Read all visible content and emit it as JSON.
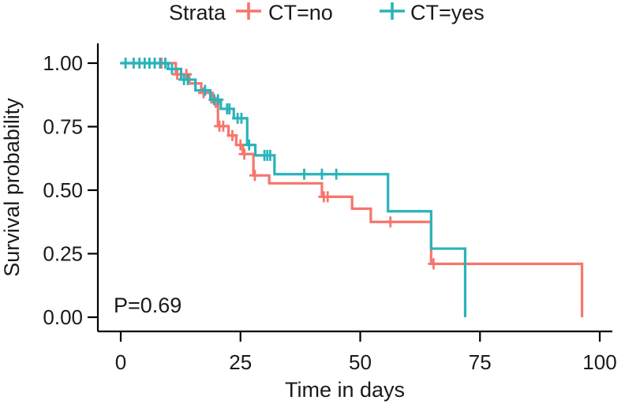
{
  "annotation": {
    "p_value": "P=0.69"
  },
  "chart_data": {
    "type": "line",
    "subtype": "kaplan-meier-step-survival",
    "title": "",
    "xlabel": "Time in days",
    "ylabel": "Survival probability",
    "xlim": [
      0,
      100
    ],
    "ylim": [
      0,
      1
    ],
    "grid": false,
    "xticks": {
      "values": [
        0,
        25,
        50,
        75,
        100
      ],
      "labels": [
        "0",
        "25",
        "50",
        "75",
        "100"
      ]
    },
    "yticks": {
      "values": [
        0,
        0.25,
        0.5,
        0.75,
        1.0
      ],
      "labels": [
        "0.00",
        "0.25",
        "0.50",
        "0.75",
        "1.00"
      ]
    },
    "legend": {
      "title": "Strata",
      "position": "top",
      "marker": "plus"
    },
    "p_value": "P=0.69",
    "axis_color": "#000000",
    "text_color": "#1a1a1a",
    "series": [
      {
        "name": "CT=no",
        "color": "#F5766C",
        "steps": [
          [
            0,
            1.0
          ],
          [
            11.5,
            0.956
          ],
          [
            14.3,
            0.92
          ],
          [
            16.8,
            0.883
          ],
          [
            19.2,
            0.846
          ],
          [
            20.3,
            0.752
          ],
          [
            22.5,
            0.715
          ],
          [
            24.1,
            0.678
          ],
          [
            25.5,
            0.642
          ],
          [
            27.7,
            0.558
          ],
          [
            31,
            0.527
          ],
          [
            42,
            0.474
          ],
          [
            48.3,
            0.427
          ],
          [
            52.2,
            0.375
          ],
          [
            64.8,
            0.21
          ],
          [
            96.3,
            0
          ]
        ],
        "censors": [
          [
            8.5,
            1.0
          ],
          [
            11.8,
            0.956
          ],
          [
            13.7,
            0.956
          ],
          [
            17.3,
            0.883
          ],
          [
            19.8,
            0.846
          ],
          [
            20.6,
            0.752
          ],
          [
            21.4,
            0.752
          ],
          [
            23.3,
            0.715
          ],
          [
            25.0,
            0.678
          ],
          [
            25.8,
            0.642
          ],
          [
            28.0,
            0.558
          ],
          [
            42.4,
            0.474
          ],
          [
            43.2,
            0.474
          ],
          [
            56.3,
            0.375
          ],
          [
            65.3,
            0.21
          ]
        ]
      },
      {
        "name": "CT=yes",
        "color": "#29B3BA",
        "steps": [
          [
            0,
            1.0
          ],
          [
            9.9,
            0.977
          ],
          [
            12.6,
            0.935
          ],
          [
            15.6,
            0.893
          ],
          [
            18.7,
            0.856
          ],
          [
            20.9,
            0.82
          ],
          [
            23.6,
            0.783
          ],
          [
            26.4,
            0.678
          ],
          [
            28.1,
            0.637
          ],
          [
            32.1,
            0.563
          ],
          [
            55.8,
            0.417
          ],
          [
            64.8,
            0.27
          ],
          [
            71.9,
            0
          ]
        ],
        "censors": [
          [
            1.0,
            1.0
          ],
          [
            2.7,
            1.0
          ],
          [
            3.9,
            1.0
          ],
          [
            5.0,
            1.0
          ],
          [
            6.0,
            1.0
          ],
          [
            7.1,
            1.0
          ],
          [
            8.2,
            1.0
          ],
          [
            9.3,
            1.0
          ],
          [
            10.7,
            0.977
          ],
          [
            13.2,
            0.935
          ],
          [
            14.0,
            0.935
          ],
          [
            17.6,
            0.893
          ],
          [
            19.5,
            0.856
          ],
          [
            20.3,
            0.856
          ],
          [
            22.2,
            0.82
          ],
          [
            22.7,
            0.82
          ],
          [
            24.4,
            0.783
          ],
          [
            25.2,
            0.783
          ],
          [
            26.8,
            0.678
          ],
          [
            30.0,
            0.637
          ],
          [
            30.6,
            0.637
          ],
          [
            31.2,
            0.637
          ],
          [
            38.3,
            0.563
          ],
          [
            42.0,
            0.563
          ],
          [
            45.0,
            0.563
          ]
        ]
      }
    ]
  }
}
